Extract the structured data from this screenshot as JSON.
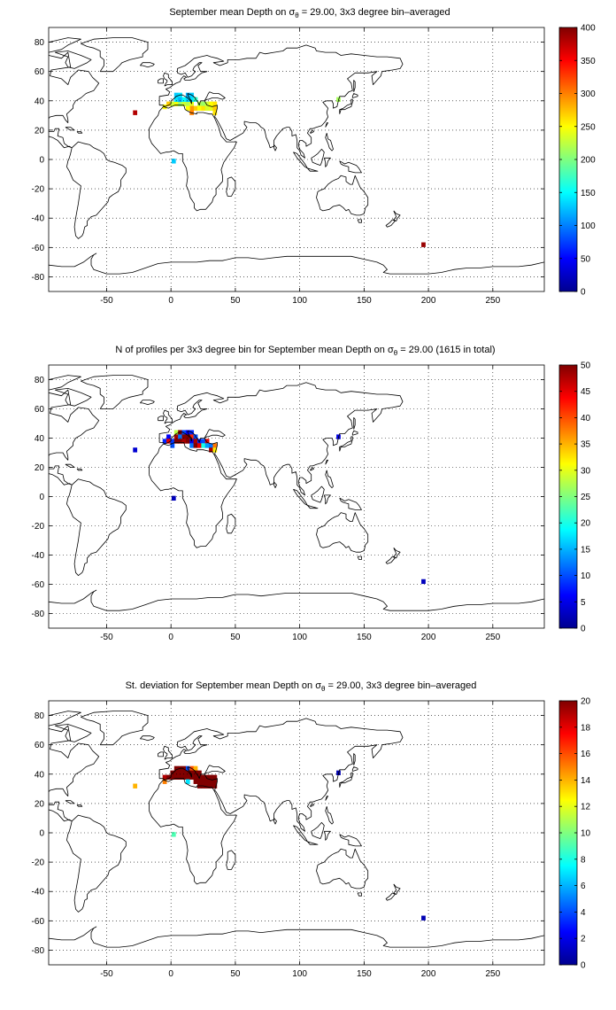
{
  "chart_data": [
    {
      "type": "heatmap",
      "title": "September mean Depth on σθ = 29.00, 3x3 degree bin–averaged",
      "title_parts": {
        "pre": "September mean Depth on σ",
        "sub": "θ",
        "post": " = 29.00, 3x3 degree bin–averaged"
      },
      "xlim": [
        -95,
        290
      ],
      "ylim": [
        -90,
        90
      ],
      "xticks": [
        -50,
        0,
        50,
        100,
        150,
        200,
        250
      ],
      "yticks": [
        -80,
        -60,
        -40,
        -20,
        0,
        20,
        40,
        60,
        80
      ],
      "grid": true,
      "colorbar": {
        "min": 0,
        "max": 400,
        "ticks": [
          0,
          50,
          100,
          150,
          200,
          250,
          300,
          350,
          400
        ]
      },
      "bins": [
        {
          "lon": -28,
          "lat": 32,
          "value": 380
        },
        {
          "lon": -5,
          "lat": 36,
          "value": 250
        },
        {
          "lon": -2,
          "lat": 38,
          "value": 270
        },
        {
          "lon": 1,
          "lat": 38,
          "value": 230
        },
        {
          "lon": 4,
          "lat": 38,
          "value": 245
        },
        {
          "lon": 7,
          "lat": 38,
          "value": 210
        },
        {
          "lon": 10,
          "lat": 38,
          "value": 230
        },
        {
          "lon": 13,
          "lat": 38,
          "value": 220
        },
        {
          "lon": 16,
          "lat": 38,
          "value": 240
        },
        {
          "lon": 22,
          "lat": 38,
          "value": 220
        },
        {
          "lon": 25,
          "lat": 38,
          "value": 210
        },
        {
          "lon": 28,
          "lat": 38,
          "value": 230
        },
        {
          "lon": 31,
          "lat": 38,
          "value": 250
        },
        {
          "lon": 34,
          "lat": 38,
          "value": 260
        },
        {
          "lon": 4,
          "lat": 41,
          "value": 140
        },
        {
          "lon": 7,
          "lat": 41,
          "value": 120
        },
        {
          "lon": 10,
          "lat": 41,
          "value": 150
        },
        {
          "lon": 13,
          "lat": 41,
          "value": 130
        },
        {
          "lon": 16,
          "lat": 41,
          "value": 140
        },
        {
          "lon": 19,
          "lat": 41,
          "value": 170
        },
        {
          "lon": 4,
          "lat": 44,
          "value": 130
        },
        {
          "lon": 7,
          "lat": 44,
          "value": 140
        },
        {
          "lon": 13,
          "lat": 44,
          "value": 120
        },
        {
          "lon": 16,
          "lat": 44,
          "value": 130
        },
        {
          "lon": 19,
          "lat": 35,
          "value": 270
        },
        {
          "lon": 22,
          "lat": 35,
          "value": 250
        },
        {
          "lon": 25,
          "lat": 35,
          "value": 260
        },
        {
          "lon": 28,
          "lat": 35,
          "value": 235
        },
        {
          "lon": 31,
          "lat": 35,
          "value": 240
        },
        {
          "lon": 34,
          "lat": 35,
          "value": 270
        },
        {
          "lon": 16,
          "lat": 35,
          "value": 290
        },
        {
          "lon": 13,
          "lat": 35,
          "value": 250
        },
        {
          "lon": 34,
          "lat": 32,
          "value": 260
        },
        {
          "lon": 16,
          "lat": 32,
          "value": 300
        },
        {
          "lon": 130,
          "lat": 41,
          "value": 215
        },
        {
          "lon": 2,
          "lat": -1,
          "value": 130
        },
        {
          "lon": 196,
          "lat": -58,
          "value": 390
        }
      ]
    },
    {
      "type": "heatmap",
      "title": "N of profiles per 3x3 degree bin for September mean Depth on σθ = 29.00 (1615 in total)",
      "title_parts": {
        "pre": "N of profiles per 3x3 degree bin for September mean Depth on σ",
        "sub": "θ",
        "post": " = 29.00 (1615 in total)"
      },
      "xlim": [
        -95,
        290
      ],
      "ylim": [
        -90,
        90
      ],
      "xticks": [
        -50,
        0,
        50,
        100,
        150,
        200,
        250
      ],
      "yticks": [
        -80,
        -60,
        -40,
        -20,
        0,
        20,
        40,
        60,
        80
      ],
      "grid": true,
      "colorbar": {
        "min": 0,
        "max": 50,
        "ticks": [
          0,
          5,
          10,
          15,
          20,
          25,
          30,
          35,
          40,
          45,
          50
        ]
      },
      "bins": [
        {
          "lon": -28,
          "lat": 32,
          "value": 4
        },
        {
          "lon": -5,
          "lat": 38,
          "value": 8
        },
        {
          "lon": -2,
          "lat": 41,
          "value": 6
        },
        {
          "lon": -2,
          "lat": 38,
          "value": 45
        },
        {
          "lon": 1,
          "lat": 38,
          "value": 9
        },
        {
          "lon": 1,
          "lat": 35,
          "value": 10
        },
        {
          "lon": 4,
          "lat": 44,
          "value": 28
        },
        {
          "lon": 4,
          "lat": 41,
          "value": 48
        },
        {
          "lon": 4,
          "lat": 38,
          "value": 50
        },
        {
          "lon": 7,
          "lat": 44,
          "value": 50
        },
        {
          "lon": 7,
          "lat": 41,
          "value": 12
        },
        {
          "lon": 7,
          "lat": 38,
          "value": 50
        },
        {
          "lon": 10,
          "lat": 44,
          "value": 10
        },
        {
          "lon": 10,
          "lat": 41,
          "value": 50
        },
        {
          "lon": 10,
          "lat": 38,
          "value": 48
        },
        {
          "lon": 13,
          "lat": 44,
          "value": 6
        },
        {
          "lon": 13,
          "lat": 41,
          "value": 50
        },
        {
          "lon": 13,
          "lat": 38,
          "value": 50
        },
        {
          "lon": 16,
          "lat": 44,
          "value": 8
        },
        {
          "lon": 16,
          "lat": 41,
          "value": 42
        },
        {
          "lon": 16,
          "lat": 38,
          "value": 5
        },
        {
          "lon": 16,
          "lat": 35,
          "value": 12
        },
        {
          "lon": 19,
          "lat": 41,
          "value": 10
        },
        {
          "lon": 19,
          "lat": 38,
          "value": 48
        },
        {
          "lon": 19,
          "lat": 35,
          "value": 50
        },
        {
          "lon": 22,
          "lat": 38,
          "value": 8
        },
        {
          "lon": 22,
          "lat": 35,
          "value": 45
        },
        {
          "lon": 25,
          "lat": 38,
          "value": 10
        },
        {
          "lon": 25,
          "lat": 35,
          "value": 20
        },
        {
          "lon": 28,
          "lat": 38,
          "value": 45
        },
        {
          "lon": 28,
          "lat": 35,
          "value": 14
        },
        {
          "lon": 31,
          "lat": 35,
          "value": 12
        },
        {
          "lon": 31,
          "lat": 32,
          "value": 48
        },
        {
          "lon": 34,
          "lat": 35,
          "value": 38
        },
        {
          "lon": 34,
          "lat": 32,
          "value": 32
        },
        {
          "lon": 130,
          "lat": 41,
          "value": 5
        },
        {
          "lon": 2,
          "lat": -1,
          "value": 3
        },
        {
          "lon": 196,
          "lat": -58,
          "value": 3
        }
      ]
    },
    {
      "type": "heatmap",
      "title": "St. deviation for September mean Depth on σθ = 29.00, 3x3 degree bin–averaged",
      "title_parts": {
        "pre": "St. deviation for September mean Depth on σ",
        "sub": "θ",
        "post": " = 29.00, 3x3 degree bin–averaged"
      },
      "xlim": [
        -95,
        290
      ],
      "ylim": [
        -90,
        90
      ],
      "xticks": [
        -50,
        0,
        50,
        100,
        150,
        200,
        250
      ],
      "yticks": [
        -80,
        -60,
        -40,
        -20,
        0,
        20,
        40,
        60,
        80
      ],
      "grid": true,
      "colorbar": {
        "min": 0,
        "max": 20,
        "ticks": [
          0,
          2,
          4,
          6,
          8,
          10,
          12,
          14,
          16,
          18,
          20
        ]
      },
      "bins": [
        {
          "lon": -28,
          "lat": 32,
          "value": 14
        },
        {
          "lon": -5,
          "lat": 38,
          "value": 19
        },
        {
          "lon": -5,
          "lat": 35,
          "value": 15
        },
        {
          "lon": -2,
          "lat": 38,
          "value": 20
        },
        {
          "lon": 1,
          "lat": 38,
          "value": 20
        },
        {
          "lon": 1,
          "lat": 41,
          "value": 20
        },
        {
          "lon": 4,
          "lat": 44,
          "value": 20
        },
        {
          "lon": 4,
          "lat": 41,
          "value": 20
        },
        {
          "lon": 4,
          "lat": 38,
          "value": 20
        },
        {
          "lon": 7,
          "lat": 44,
          "value": 20
        },
        {
          "lon": 7,
          "lat": 41,
          "value": 20
        },
        {
          "lon": 7,
          "lat": 38,
          "value": 20
        },
        {
          "lon": 10,
          "lat": 44,
          "value": 20
        },
        {
          "lon": 10,
          "lat": 41,
          "value": 20
        },
        {
          "lon": 10,
          "lat": 38,
          "value": 20
        },
        {
          "lon": 13,
          "lat": 44,
          "value": 4
        },
        {
          "lon": 13,
          "lat": 41,
          "value": 20
        },
        {
          "lon": 13,
          "lat": 38,
          "value": 20
        },
        {
          "lon": 13,
          "lat": 35,
          "value": 7
        },
        {
          "lon": 16,
          "lat": 44,
          "value": 16
        },
        {
          "lon": 16,
          "lat": 41,
          "value": 20
        },
        {
          "lon": 16,
          "lat": 38,
          "value": 20
        },
        {
          "lon": 19,
          "lat": 44,
          "value": 14
        },
        {
          "lon": 19,
          "lat": 41,
          "value": 20
        },
        {
          "lon": 19,
          "lat": 38,
          "value": 20
        },
        {
          "lon": 19,
          "lat": 35,
          "value": 20
        },
        {
          "lon": 22,
          "lat": 41,
          "value": 20
        },
        {
          "lon": 22,
          "lat": 38,
          "value": 20
        },
        {
          "lon": 22,
          "lat": 35,
          "value": 20
        },
        {
          "lon": 22,
          "lat": 32,
          "value": 20
        },
        {
          "lon": 25,
          "lat": 38,
          "value": 20
        },
        {
          "lon": 25,
          "lat": 35,
          "value": 20
        },
        {
          "lon": 25,
          "lat": 32,
          "value": 20
        },
        {
          "lon": 28,
          "lat": 38,
          "value": 20
        },
        {
          "lon": 28,
          "lat": 35,
          "value": 20
        },
        {
          "lon": 28,
          "lat": 32,
          "value": 20
        },
        {
          "lon": 31,
          "lat": 38,
          "value": 20
        },
        {
          "lon": 31,
          "lat": 35,
          "value": 20
        },
        {
          "lon": 31,
          "lat": 32,
          "value": 20
        },
        {
          "lon": 34,
          "lat": 38,
          "value": 20
        },
        {
          "lon": 34,
          "lat": 35,
          "value": 20
        },
        {
          "lon": 34,
          "lat": 32,
          "value": 20
        },
        {
          "lon": 130,
          "lat": 41,
          "value": 1
        },
        {
          "lon": 2,
          "lat": -1,
          "value": 9
        },
        {
          "lon": 196,
          "lat": -58,
          "value": 1
        }
      ]
    }
  ]
}
